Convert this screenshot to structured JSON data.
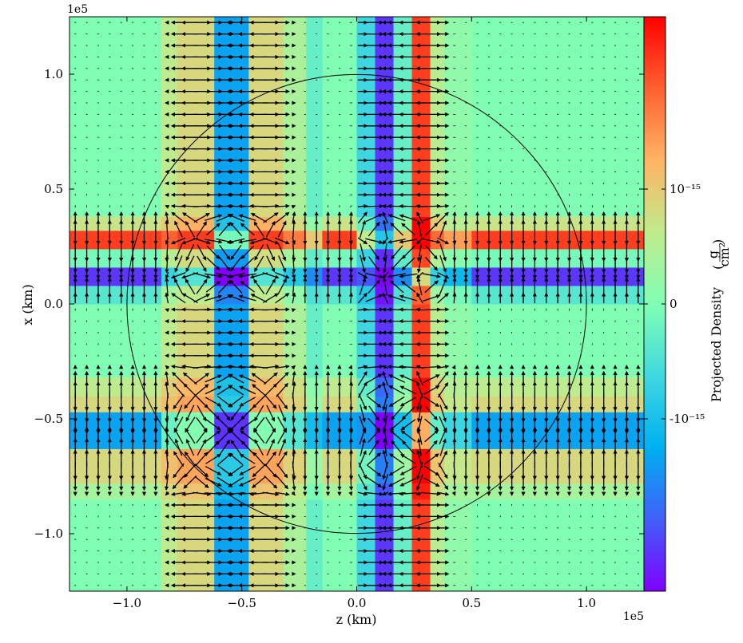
{
  "chart_data": {
    "type": "heatmap",
    "title": "",
    "xlabel": "z  (km)",
    "ylabel": "x  (km)",
    "x_offset_label": "1e5",
    "y_offset_label": "1e5",
    "xlim": [
      -1.25,
      1.25
    ],
    "ylim": [
      -1.25,
      1.25
    ],
    "xticks": [
      "−1.0",
      "−0.5",
      "0.0",
      "0.5",
      "1.0"
    ],
    "xtick_values": [
      -1.0,
      -0.5,
      0.0,
      0.5,
      1.0
    ],
    "yticks": [
      "−1.0",
      "−0.5",
      "0.0",
      "0.5",
      "1.0"
    ],
    "ytick_values": [
      -1.0,
      -0.5,
      0.0,
      0.5,
      1.0
    ],
    "grid": false,
    "colormap": "rainbow",
    "colormap_stops": [
      "#8000ff",
      "#4060f8",
      "#00b0f0",
      "#40d8e0",
      "#80ffb4",
      "#c0eb8c",
      "#ffb464",
      "#ff6030",
      "#ff0000"
    ],
    "colorbar": {
      "label": "Projected Density",
      "unit_numerator": "g",
      "unit_denominator": "cm²",
      "tick_labels": [
        "10⁻¹⁵",
        "0",
        "-10⁻¹⁵"
      ],
      "tick_values": [
        1.0,
        0.0,
        -1.0
      ],
      "range": [
        -2.5,
        2.5
      ]
    },
    "field": {
      "background_value": 0.0,
      "vertical_bands": [
        {
          "z": [
            -0.85,
            -0.78
          ],
          "value": 0.6
        },
        {
          "z": [
            -0.78,
            -0.62
          ],
          "value": 0.85
        },
        {
          "z": [
            -0.62,
            -0.47
          ],
          "value": -1.35
        },
        {
          "z": [
            -0.47,
            -0.32
          ],
          "value": 0.85
        },
        {
          "z": [
            -0.32,
            -0.22
          ],
          "value": 0.4
        },
        {
          "z": [
            -0.22,
            -0.15
          ],
          "value": -0.25
        },
        {
          "z": [
            0.0,
            0.08
          ],
          "value": -0.65
        },
        {
          "z": [
            0.08,
            0.16
          ],
          "value": -2.15
        },
        {
          "z": [
            0.16,
            0.24
          ],
          "value": -0.25
        },
        {
          "z": [
            0.24,
            0.32
          ],
          "value": 2.1
        },
        {
          "z": [
            0.32,
            0.38
          ],
          "value": 0.55
        },
        {
          "z": [
            0.38,
            0.5
          ],
          "value": 0.15
        }
      ],
      "horizontal_bands": [
        {
          "x": [
            0.38,
            0.32
          ],
          "value": 0.7
        },
        {
          "x": [
            0.32,
            0.24
          ],
          "value": 2.1
        },
        {
          "x": [
            0.24,
            0.16
          ],
          "value": -0.1
        },
        {
          "x": [
            0.16,
            0.08
          ],
          "value": -2.15
        },
        {
          "x": [
            0.08,
            0.0
          ],
          "value": -0.4
        },
        {
          "x": [
            -0.32,
            -0.4
          ],
          "value": 0.6
        },
        {
          "x": [
            -0.4,
            -0.47
          ],
          "value": 0.85
        },
        {
          "x": [
            -0.47,
            -0.63
          ],
          "value": -1.35
        },
        {
          "x": [
            -0.63,
            -0.78
          ],
          "value": 0.85
        },
        {
          "x": [
            -0.78,
            -0.85
          ],
          "value": 0.35
        }
      ]
    },
    "vector_field": {
      "sources_vertical": [
        {
          "z": -0.55,
          "strength": 1.0,
          "sign": -1
        },
        {
          "z": 0.12,
          "strength": 0.8,
          "sign": -1
        },
        {
          "z": 0.28,
          "strength": 1.0,
          "sign": 1
        },
        {
          "z": -0.7,
          "strength": 0.7,
          "sign": 1
        },
        {
          "z": -0.4,
          "strength": 0.7,
          "sign": 1
        }
      ],
      "sources_horizontal": [
        {
          "x": 0.28,
          "strength": 1.0,
          "sign": 1
        },
        {
          "x": 0.12,
          "strength": 0.9,
          "sign": -1
        },
        {
          "x": -0.55,
          "strength": 1.0,
          "sign": -1
        },
        {
          "x": -0.7,
          "strength": 0.8,
          "sign": 1
        },
        {
          "x": -0.4,
          "strength": 0.7,
          "sign": 1
        }
      ],
      "grid_spacing": 0.05
    },
    "circle": {
      "center": [
        0.0,
        0.0
      ],
      "radius": 1.0,
      "color": "#000000"
    }
  }
}
